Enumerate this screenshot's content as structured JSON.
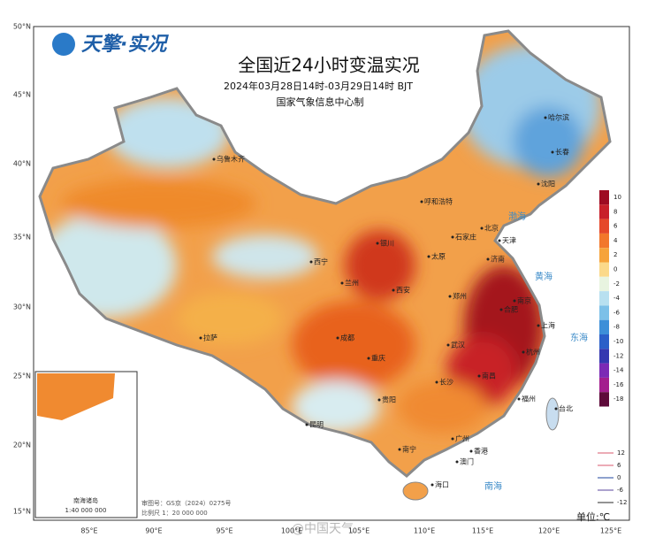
{
  "brand": "天擎·实况",
  "title": "全国近24小时变温实况",
  "subtitle": "2024年03月28日14时-03月29日14时 BJT",
  "producer": "国家气象信息中心制",
  "latitude_labels": [
    "50°N",
    "45°N",
    "40°N",
    "35°N",
    "30°N",
    "25°N",
    "20°N",
    "15°N"
  ],
  "longitude_labels": [
    "85°E",
    "90°E",
    "95°E",
    "100°E",
    "105°E",
    "110°E",
    "115°E",
    "120°E",
    "125°E"
  ],
  "legend": {
    "labels": [
      "10",
      "8",
      "6",
      "4",
      "2",
      "0",
      "-2",
      "-4",
      "-6",
      "-8",
      "-10",
      "-12",
      "-14",
      "-16",
      "-18"
    ],
    "colors": [
      "#9e0b22",
      "#c8202a",
      "#e5482a",
      "#f2772b",
      "#f6a33a",
      "#fbd98a",
      "#e8f4e0",
      "#b8e0f0",
      "#7cc0e8",
      "#3d8fd8",
      "#2b5fc8",
      "#3438b0",
      "#7b2ab5",
      "#a31e8e",
      "#5e0a3a"
    ]
  },
  "contour_legend": {
    "labels": [
      "12",
      "6",
      "0",
      "-6",
      "-12"
    ],
    "colors": [
      "#e07a8a",
      "#e07a8a",
      "#4a6ab0",
      "#7a6ab0",
      "#555555"
    ]
  },
  "cities": [
    "乌鲁木齐",
    "哈尔滨",
    "长春",
    "沈阳",
    "呼和浩特",
    "北京",
    "天津",
    "石家庄",
    "太原",
    "银川",
    "济南",
    "西宁",
    "兰州",
    "郑州",
    "西安",
    "合肥",
    "南京",
    "上海",
    "拉萨",
    "成都",
    "武汉",
    "杭州",
    "重庆",
    "长沙",
    "南昌",
    "福州",
    "贵阳",
    "台北",
    "昆明",
    "南宁",
    "广州",
    "香港",
    "澳门",
    "海口"
  ],
  "seas": [
    "渤海",
    "黄海",
    "东海",
    "南海"
  ],
  "inset": {
    "title": "南海诸岛",
    "scale": "1:40 000 000"
  },
  "map_number": "审图号：GS京（2024）0275号",
  "scale": "比例尺 1：20 000 000",
  "unit": "单位:℃",
  "watermark": "@中国天气"
}
